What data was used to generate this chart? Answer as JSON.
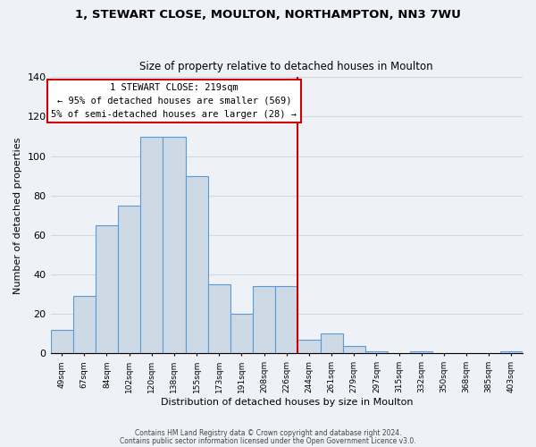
{
  "title": "1, STEWART CLOSE, MOULTON, NORTHAMPTON, NN3 7WU",
  "subtitle": "Size of property relative to detached houses in Moulton",
  "xlabel": "Distribution of detached houses by size in Moulton",
  "ylabel": "Number of detached properties",
  "bar_color": "#cdd9e5",
  "bar_edge_color": "#5b9bd5",
  "background_color": "#eef2f7",
  "grid_color": "#d0d8e0",
  "categories": [
    "49sqm",
    "67sqm",
    "84sqm",
    "102sqm",
    "120sqm",
    "138sqm",
    "155sqm",
    "173sqm",
    "191sqm",
    "208sqm",
    "226sqm",
    "244sqm",
    "261sqm",
    "279sqm",
    "297sqm",
    "315sqm",
    "332sqm",
    "350sqm",
    "368sqm",
    "385sqm",
    "403sqm"
  ],
  "values": [
    12,
    29,
    65,
    75,
    110,
    110,
    90,
    35,
    20,
    34,
    34,
    7,
    10,
    4,
    1,
    0,
    1,
    0,
    0,
    0,
    1
  ],
  "ylim": [
    0,
    140
  ],
  "yticks": [
    0,
    20,
    40,
    60,
    80,
    100,
    120,
    140
  ],
  "vline_x": 10.5,
  "vline_color": "#cc0000",
  "annotation_title": "1 STEWART CLOSE: 219sqm",
  "annotation_line1": "← 95% of detached houses are smaller (569)",
  "annotation_line2": "5% of semi-detached houses are larger (28) →",
  "annotation_box_color": "#ffffff",
  "annotation_box_edge": "#cc0000",
  "footer1": "Contains HM Land Registry data © Crown copyright and database right 2024.",
  "footer2": "Contains public sector information licensed under the Open Government Licence v3.0."
}
